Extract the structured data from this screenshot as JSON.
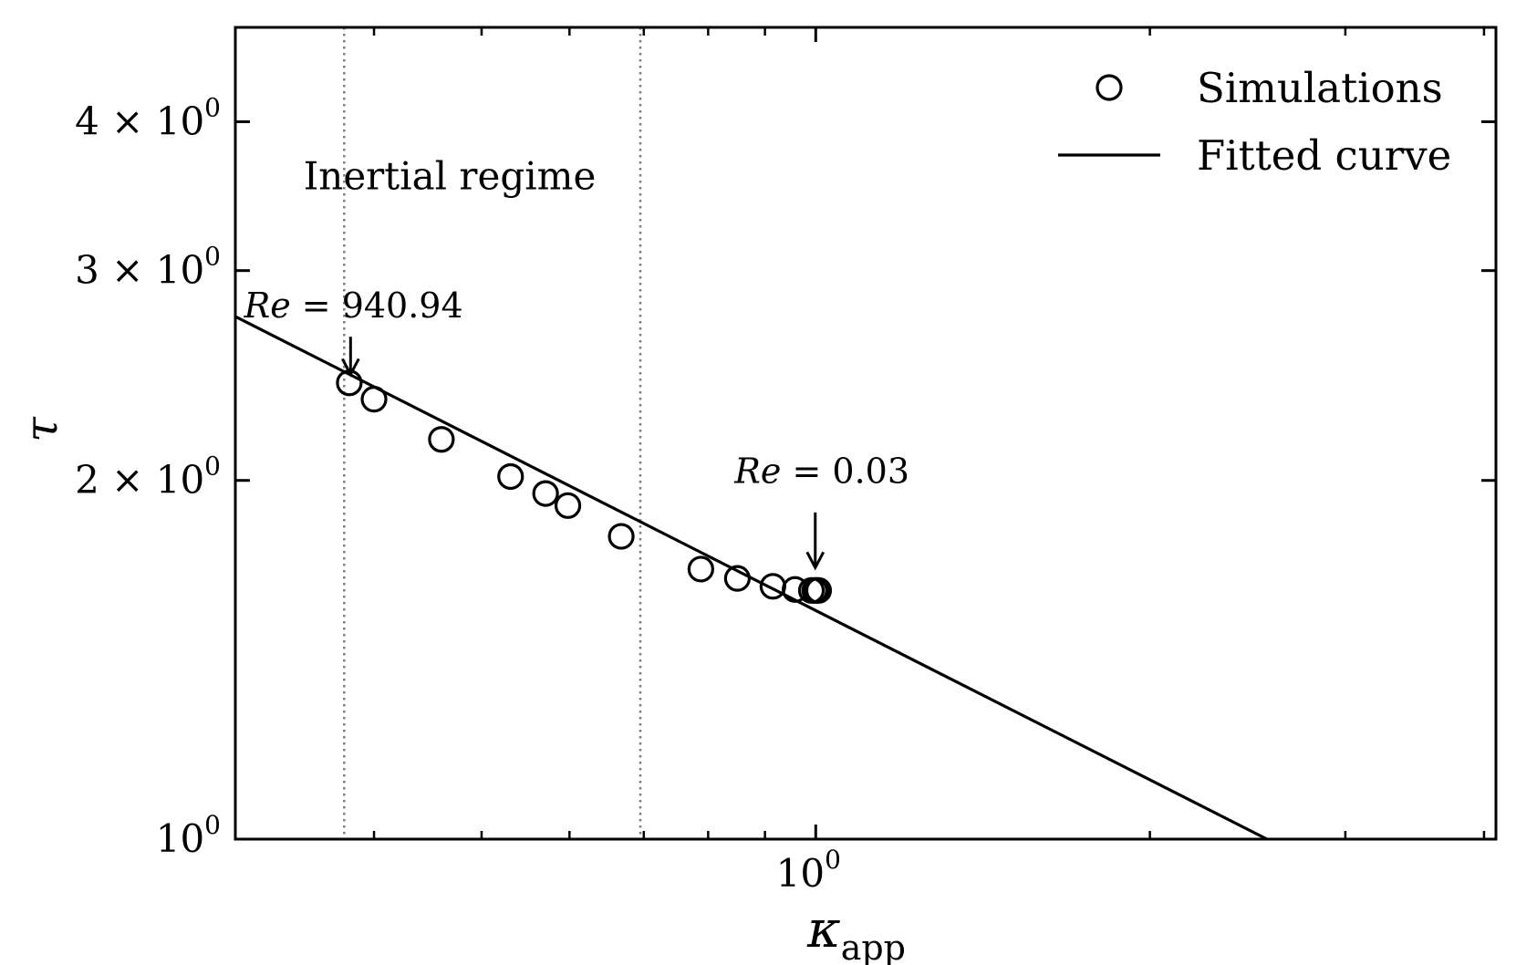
{
  "chart_data": {
    "type": "scatter",
    "xscale": "log",
    "yscale": "log",
    "xlabel": "κ",
    "xlabel_subscript": "app",
    "ylabel": "τ",
    "xlim": [
      0.3,
      4.1
    ],
    "ylim": [
      1.0,
      4.8
    ],
    "grid": false,
    "legend": {
      "position": "top-right",
      "entries": [
        {
          "label": "Simulations",
          "marker": "circle"
        },
        {
          "label": "Fitted curve",
          "marker": "line"
        }
      ]
    },
    "x_ticks": [
      {
        "value": 1.0,
        "label": "10",
        "exponent": "0"
      }
    ],
    "y_ticks": [
      {
        "value": 1.0,
        "label": "10",
        "exponent": "0"
      },
      {
        "value": 2.0,
        "label": "2 × 10",
        "exponent": "0"
      },
      {
        "value": 3.0,
        "label": "3 × 10",
        "exponent": "0"
      },
      {
        "value": 4.0,
        "label": "4 × 10",
        "exponent": "0"
      }
    ],
    "x_minor_ticks": [
      0.4,
      0.5,
      0.6,
      0.7,
      0.8,
      0.9,
      2.0,
      3.0,
      4.0
    ],
    "series": [
      {
        "name": "Simulations",
        "type": "scatter",
        "x": [
          0.38,
          0.4,
          0.46,
          0.531,
          0.571,
          0.598,
          0.668,
          0.788,
          0.85,
          0.915,
          0.958,
          0.991,
          0.998,
          1.002,
          1.006
        ],
        "y": [
          2.415,
          2.34,
          2.165,
          2.015,
          1.95,
          1.905,
          1.795,
          1.685,
          1.655,
          1.63,
          1.62,
          1.617,
          1.617,
          1.617,
          1.617
        ]
      },
      {
        "name": "Fitted curve",
        "type": "line",
        "x": [
          0.3,
          2.55
        ],
        "y": [
          2.745,
          1.0
        ]
      }
    ],
    "vlines": [
      {
        "x": 0.376,
        "style": "dotted",
        "color": "#808080"
      },
      {
        "x": 0.695,
        "style": "dotted",
        "color": "#808080"
      }
    ],
    "annotations": [
      {
        "text_pre": "Re",
        "text_post": " = 940.94",
        "text_x": 0.3055,
        "text_y": 2.74,
        "arrow_from": [
          0.381,
          2.64
        ],
        "arrow_to": [
          0.381,
          2.455
        ]
      },
      {
        "text_pre": "Re",
        "text_post": " = 0.03",
        "text_x": 0.845,
        "text_y": 1.99,
        "arrow_from": [
          0.999,
          1.88
        ],
        "arrow_to": [
          0.999,
          1.69
        ]
      }
    ],
    "region_label": {
      "text": "Inertial regime",
      "x": 0.468,
      "y": 3.51
    }
  },
  "colors": {
    "axes": "#000000",
    "marker_edge": "#000000",
    "marker_fill": "#ffffff",
    "curve": "#000000",
    "vline": "#808080",
    "background": "#ffffff"
  }
}
